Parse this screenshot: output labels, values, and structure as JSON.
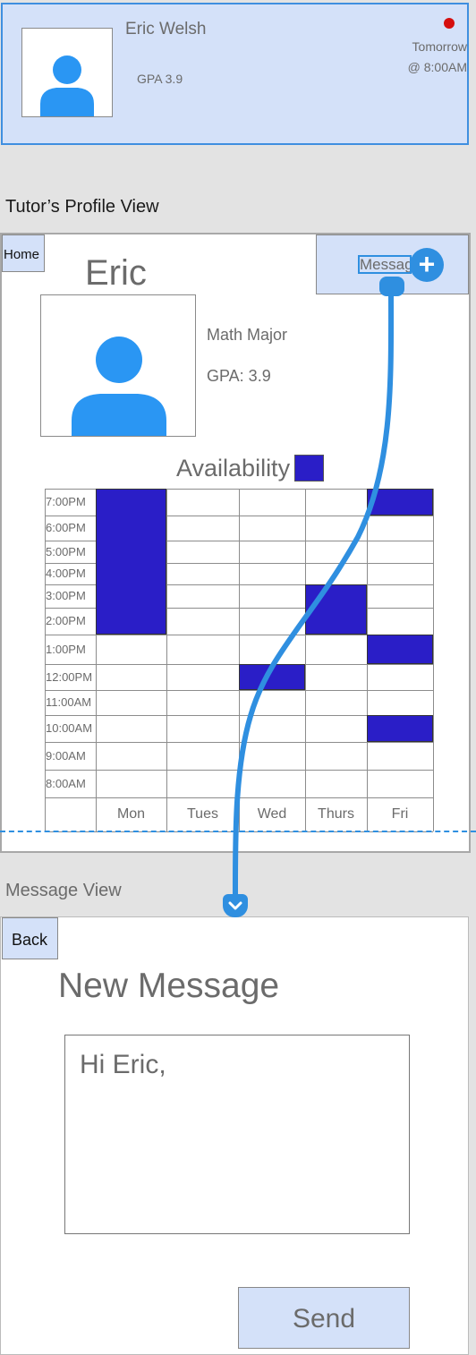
{
  "card": {
    "name": "Eric Welsh",
    "gpa": "GPA 3.9",
    "time_line1": "Tomorrow",
    "time_line2": "@ 8:00AM",
    "status_color": "#d50e0e"
  },
  "sections": {
    "profile_title": "Tutor’s Profile View",
    "message_title": "Message View"
  },
  "profile": {
    "home_label": "Home",
    "message_label": "Message",
    "tutor_name": "Eric",
    "major": "Math Major",
    "gpa": "GPA: 3.9",
    "availability_label": "Availability",
    "icons": [
      "plus-icon",
      "avatar-person-icon"
    ]
  },
  "schedule": {
    "times": [
      "7:00PM",
      "6:00PM",
      "5:00PM",
      "4:00PM",
      "3:00PM",
      "2:00PM",
      "1:00PM",
      "12:00PM",
      "11:00AM",
      "10:00AM",
      "9:00AM",
      "8:00AM"
    ],
    "days": [
      "Mon",
      "Tues",
      "Wed",
      "Thurs",
      "Fri"
    ],
    "available_color": "#2a1ec7",
    "available_slots": [
      {
        "day": "Mon",
        "from": "2:00PM",
        "to": "7:00PM"
      },
      {
        "day": "Wed",
        "from": "12:00PM",
        "to": "12:00PM"
      },
      {
        "day": "Thurs",
        "from": "2:00PM",
        "to": "3:00PM"
      },
      {
        "day": "Fri",
        "from": "7:00PM",
        "to": "7:00PM"
      },
      {
        "day": "Fri",
        "from": "1:00PM",
        "to": "1:00PM"
      },
      {
        "day": "Fri",
        "from": "10:00AM",
        "to": "10:00AM"
      }
    ]
  },
  "message": {
    "back_label": "Back",
    "title": "New Message",
    "body": "Hi Eric,",
    "send_label": "Send"
  },
  "accent_color": "#2f8fe0",
  "button_color": "#d4e1f9"
}
